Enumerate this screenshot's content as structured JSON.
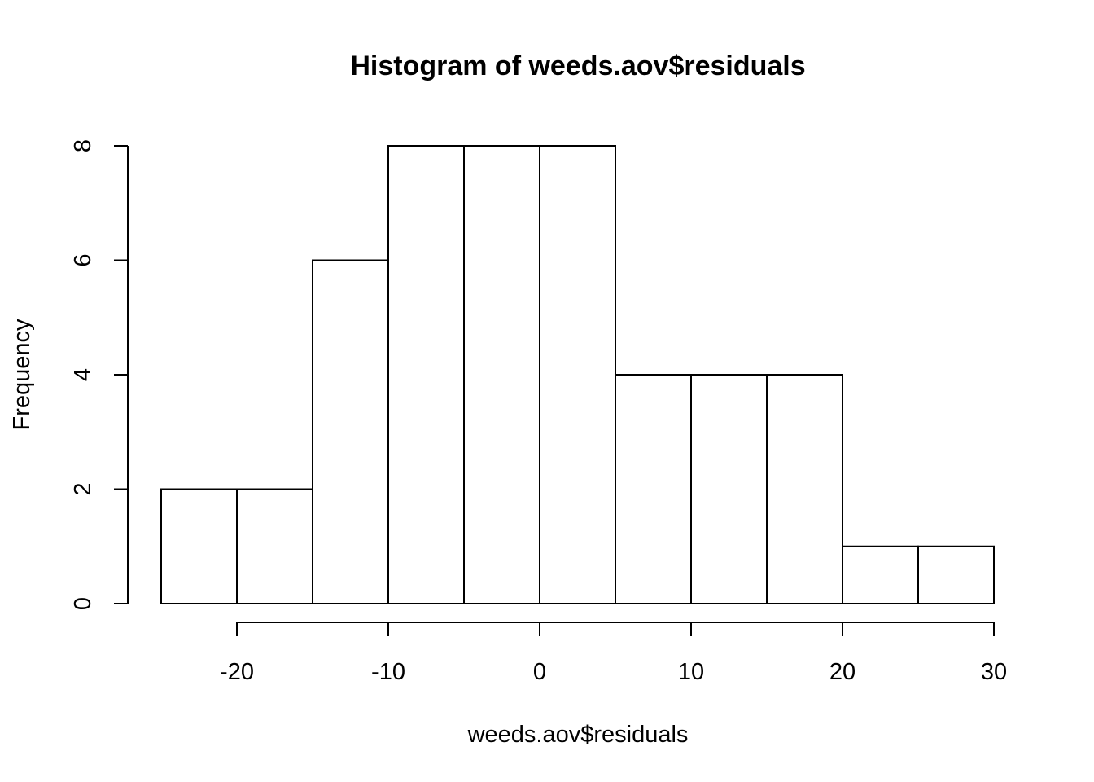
{
  "chart_data": {
    "type": "bar",
    "title": "Histogram of weeds.aov$residuals",
    "xlabel": "weeds.aov$residuals",
    "ylabel": "Frequency",
    "bins": [
      {
        "start": -25,
        "end": -20,
        "count": 2
      },
      {
        "start": -20,
        "end": -15,
        "count": 2
      },
      {
        "start": -15,
        "end": -10,
        "count": 6
      },
      {
        "start": -10,
        "end": -5,
        "count": 8
      },
      {
        "start": -5,
        "end": 0,
        "count": 8
      },
      {
        "start": 0,
        "end": 5,
        "count": 8
      },
      {
        "start": 5,
        "end": 10,
        "count": 4
      },
      {
        "start": 10,
        "end": 15,
        "count": 4
      },
      {
        "start": 15,
        "end": 20,
        "count": 4
      },
      {
        "start": 20,
        "end": 25,
        "count": 1
      },
      {
        "start": 25,
        "end": 30,
        "count": 1
      }
    ],
    "xticks": [
      -20,
      -10,
      0,
      10,
      20,
      30
    ],
    "yticks": [
      0,
      2,
      4,
      6,
      8
    ],
    "xlim": [
      -25,
      30
    ],
    "ylim": [
      0,
      8
    ],
    "grid": false,
    "legend": "none"
  }
}
